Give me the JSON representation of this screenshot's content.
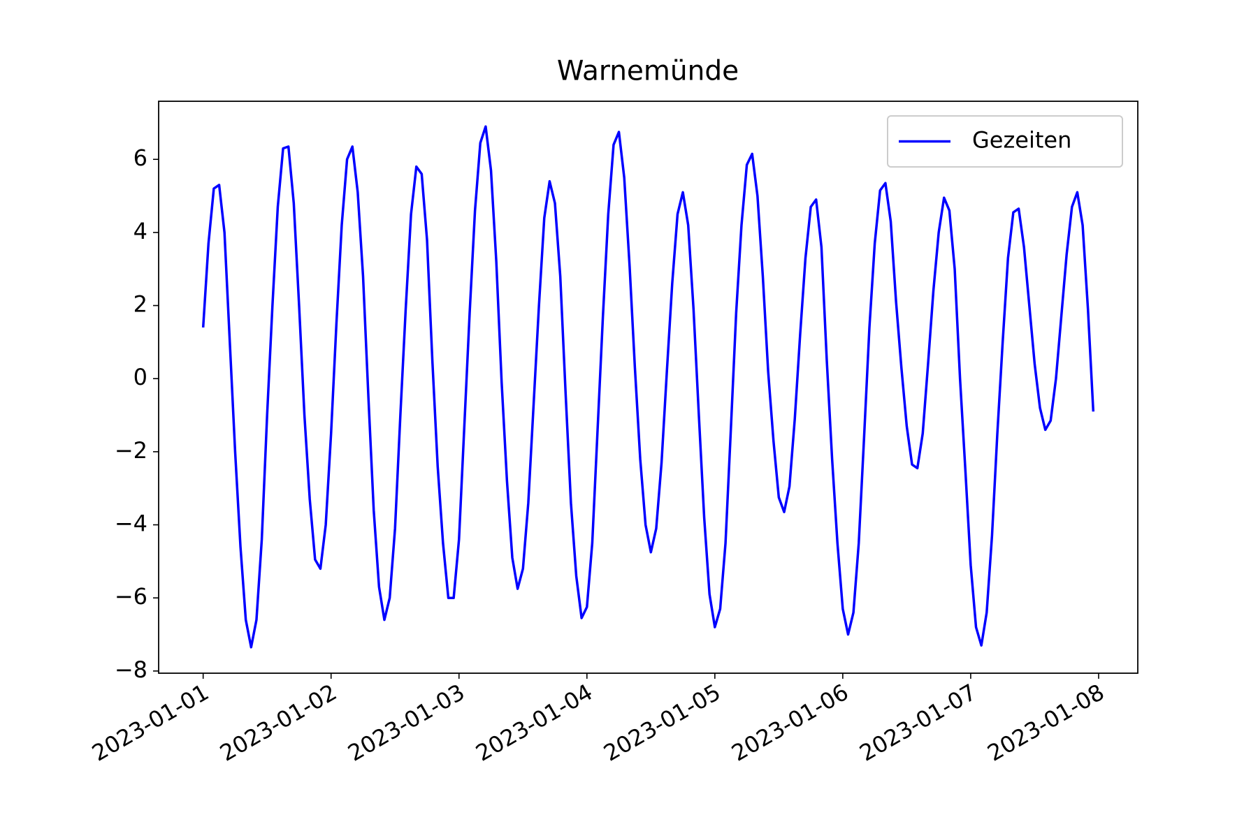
{
  "chart_data": {
    "type": "line",
    "title": "Warnemünde",
    "x": [
      "2023-01-01T00:00",
      "2023-01-01T01:00",
      "2023-01-01T02:00",
      "2023-01-01T03:00",
      "2023-01-01T04:00",
      "2023-01-01T05:00",
      "2023-01-01T06:00",
      "2023-01-01T07:00",
      "2023-01-01T08:00",
      "2023-01-01T09:00",
      "2023-01-01T10:00",
      "2023-01-01T11:00",
      "2023-01-01T12:00",
      "2023-01-01T13:00",
      "2023-01-01T14:00",
      "2023-01-01T15:00",
      "2023-01-01T16:00",
      "2023-01-01T17:00",
      "2023-01-01T18:00",
      "2023-01-01T19:00",
      "2023-01-01T20:00",
      "2023-01-01T21:00",
      "2023-01-01T22:00",
      "2023-01-01T23:00",
      "2023-01-02T00:00",
      "2023-01-02T01:00",
      "2023-01-02T02:00",
      "2023-01-02T03:00",
      "2023-01-02T04:00",
      "2023-01-02T05:00",
      "2023-01-02T06:00",
      "2023-01-02T07:00",
      "2023-01-02T08:00",
      "2023-01-02T09:00",
      "2023-01-02T10:00",
      "2023-01-02T11:00",
      "2023-01-02T12:00",
      "2023-01-02T13:00",
      "2023-01-02T14:00",
      "2023-01-02T15:00",
      "2023-01-02T16:00",
      "2023-01-02T17:00",
      "2023-01-02T18:00",
      "2023-01-02T19:00",
      "2023-01-02T20:00",
      "2023-01-02T21:00",
      "2023-01-02T22:00",
      "2023-01-02T23:00",
      "2023-01-03T00:00",
      "2023-01-03T01:00",
      "2023-01-03T02:00",
      "2023-01-03T03:00",
      "2023-01-03T04:00",
      "2023-01-03T05:00",
      "2023-01-03T06:00",
      "2023-01-03T07:00",
      "2023-01-03T08:00",
      "2023-01-03T09:00",
      "2023-01-03T10:00",
      "2023-01-03T11:00",
      "2023-01-03T12:00",
      "2023-01-03T13:00",
      "2023-01-03T14:00",
      "2023-01-03T15:00",
      "2023-01-03T16:00",
      "2023-01-03T17:00",
      "2023-01-03T18:00",
      "2023-01-03T19:00",
      "2023-01-03T20:00",
      "2023-01-03T21:00",
      "2023-01-03T22:00",
      "2023-01-03T23:00",
      "2023-01-04T00:00",
      "2023-01-04T01:00",
      "2023-01-04T02:00",
      "2023-01-04T03:00",
      "2023-01-04T04:00",
      "2023-01-04T05:00",
      "2023-01-04T06:00",
      "2023-01-04T07:00",
      "2023-01-04T08:00",
      "2023-01-04T09:00",
      "2023-01-04T10:00",
      "2023-01-04T11:00",
      "2023-01-04T12:00",
      "2023-01-04T13:00",
      "2023-01-04T14:00",
      "2023-01-04T15:00",
      "2023-01-04T16:00",
      "2023-01-04T17:00",
      "2023-01-04T18:00",
      "2023-01-04T19:00",
      "2023-01-04T20:00",
      "2023-01-04T21:00",
      "2023-01-04T22:00",
      "2023-01-04T23:00",
      "2023-01-05T00:00",
      "2023-01-05T01:00",
      "2023-01-05T02:00",
      "2023-01-05T03:00",
      "2023-01-05T04:00",
      "2023-01-05T05:00",
      "2023-01-05T06:00",
      "2023-01-05T07:00",
      "2023-01-05T08:00",
      "2023-01-05T09:00",
      "2023-01-05T10:00",
      "2023-01-05T11:00",
      "2023-01-05T12:00",
      "2023-01-05T13:00",
      "2023-01-05T14:00",
      "2023-01-05T15:00",
      "2023-01-05T16:00",
      "2023-01-05T17:00",
      "2023-01-05T18:00",
      "2023-01-05T19:00",
      "2023-01-05T20:00",
      "2023-01-05T21:00",
      "2023-01-05T22:00",
      "2023-01-05T23:00",
      "2023-01-06T00:00",
      "2023-01-06T01:00",
      "2023-01-06T02:00",
      "2023-01-06T03:00",
      "2023-01-06T04:00",
      "2023-01-06T05:00",
      "2023-01-06T06:00",
      "2023-01-06T07:00",
      "2023-01-06T08:00",
      "2023-01-06T09:00",
      "2023-01-06T10:00",
      "2023-01-06T11:00",
      "2023-01-06T12:00",
      "2023-01-06T13:00",
      "2023-01-06T14:00",
      "2023-01-06T15:00",
      "2023-01-06T16:00",
      "2023-01-06T17:00",
      "2023-01-06T18:00",
      "2023-01-06T19:00",
      "2023-01-06T20:00",
      "2023-01-06T21:00",
      "2023-01-06T22:00",
      "2023-01-06T23:00",
      "2023-01-07T00:00",
      "2023-01-07T01:00",
      "2023-01-07T02:00",
      "2023-01-07T03:00",
      "2023-01-07T04:00",
      "2023-01-07T05:00",
      "2023-01-07T06:00",
      "2023-01-07T07:00",
      "2023-01-07T08:00",
      "2023-01-07T09:00",
      "2023-01-07T10:00",
      "2023-01-07T11:00",
      "2023-01-07T12:00",
      "2023-01-07T13:00",
      "2023-01-07T14:00",
      "2023-01-07T15:00",
      "2023-01-07T16:00",
      "2023-01-07T17:00",
      "2023-01-07T18:00",
      "2023-01-07T19:00",
      "2023-01-07T20:00",
      "2023-01-07T21:00",
      "2023-01-07T22:00",
      "2023-01-07T23:00"
    ],
    "series": [
      {
        "name": "Gezeiten",
        "color": "#0000ff",
        "values": [
          1.4,
          3.7,
          5.2,
          5.3,
          4.0,
          1.0,
          -2.0,
          -4.6,
          -6.6,
          -7.35,
          -6.6,
          -4.4,
          -1.0,
          2.0,
          4.7,
          6.3,
          6.35,
          4.8,
          2.0,
          -1.0,
          -3.3,
          -4.95,
          -5.2,
          -4.0,
          -1.5,
          1.5,
          4.2,
          6.0,
          6.35,
          5.1,
          2.8,
          -0.5,
          -3.6,
          -5.7,
          -6.6,
          -6.0,
          -4.1,
          -1.0,
          1.9,
          4.5,
          5.8,
          5.6,
          3.8,
          0.5,
          -2.4,
          -4.5,
          -6.0,
          -6.0,
          -4.4,
          -1.3,
          1.8,
          4.6,
          6.45,
          6.9,
          5.7,
          3.2,
          -0.1,
          -2.8,
          -4.9,
          -5.75,
          -5.2,
          -3.4,
          -0.7,
          2.0,
          4.4,
          5.4,
          4.8,
          2.8,
          -0.4,
          -3.4,
          -5.4,
          -6.55,
          -6.25,
          -4.5,
          -1.4,
          1.7,
          4.5,
          6.4,
          6.75,
          5.5,
          3.1,
          0.3,
          -2.2,
          -4.0,
          -4.75,
          -4.1,
          -2.3,
          0.2,
          2.6,
          4.5,
          5.1,
          4.2,
          1.9,
          -1.0,
          -3.8,
          -5.9,
          -6.8,
          -6.3,
          -4.5,
          -1.4,
          1.8,
          4.2,
          5.85,
          6.15,
          5.0,
          2.8,
          0.2,
          -1.7,
          -3.25,
          -3.65,
          -2.95,
          -1.1,
          1.2,
          3.3,
          4.7,
          4.9,
          3.6,
          0.5,
          -2.2,
          -4.5,
          -6.3,
          -7.0,
          -6.4,
          -4.5,
          -1.6,
          1.4,
          3.7,
          5.15,
          5.35,
          4.3,
          2.1,
          0.3,
          -1.3,
          -2.35,
          -2.45,
          -1.5,
          0.4,
          2.4,
          4.0,
          4.95,
          4.6,
          3.0,
          0.0,
          -2.5,
          -5.1,
          -6.8,
          -7.3,
          -6.4,
          -4.3,
          -1.5,
          1.0,
          3.3,
          4.55,
          4.65,
          3.6,
          2.0,
          0.4,
          -0.8,
          -1.4,
          -1.15,
          0.0,
          1.7,
          3.4,
          4.7,
          5.1,
          4.2,
          1.9,
          -0.9
        ]
      }
    ],
    "xlim": [
      "2022-12-31T15:39",
      "2023-01-08T07:21"
    ],
    "xticks": [
      "2023-01-01",
      "2023-01-02",
      "2023-01-03",
      "2023-01-04",
      "2023-01-05",
      "2023-01-06",
      "2023-01-07",
      "2023-01-08"
    ],
    "ylim": [
      -8.06,
      7.59
    ],
    "yticks": [
      {
        "value": -8,
        "label": "−8"
      },
      {
        "value": -6,
        "label": "−6"
      },
      {
        "value": -4,
        "label": "−4"
      },
      {
        "value": -2,
        "label": "−2"
      },
      0,
      2,
      4,
      6
    ],
    "legend": "upper right"
  }
}
